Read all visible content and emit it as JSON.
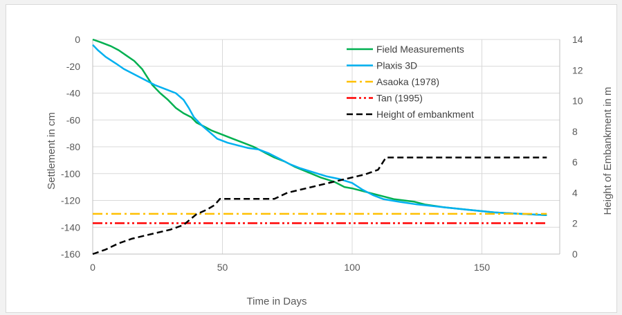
{
  "chart_data": {
    "type": "line",
    "title": "",
    "xlabel": "Time in Days",
    "ylabel": "Settlement in cm",
    "y2label": "Height of Embankment in m",
    "xlim": [
      0,
      180
    ],
    "ylim": [
      -160,
      0
    ],
    "y2lim": [
      0,
      14
    ],
    "xticks": [
      0,
      50,
      100,
      150
    ],
    "yticks": [
      0,
      -20,
      -40,
      -60,
      -80,
      -100,
      -120,
      -140,
      -160
    ],
    "y2ticks": [
      14,
      12,
      10,
      8,
      6,
      4,
      2,
      0
    ],
    "grid": true,
    "legend_position": "top-right",
    "series": [
      {
        "name": "Field Measurements",
        "axis": "left",
        "style": "solid",
        "color": "#00b050",
        "points": [
          [
            0,
            0
          ],
          [
            3,
            -2
          ],
          [
            7,
            -5
          ],
          [
            10,
            -8
          ],
          [
            13,
            -12
          ],
          [
            16,
            -16
          ],
          [
            19,
            -22
          ],
          [
            21,
            -28
          ],
          [
            23,
            -34
          ],
          [
            26,
            -40
          ],
          [
            29,
            -45
          ],
          [
            32,
            -51
          ],
          [
            35,
            -55
          ],
          [
            38,
            -58
          ],
          [
            40,
            -62
          ],
          [
            43,
            -65
          ],
          [
            46,
            -68
          ],
          [
            50,
            -71
          ],
          [
            54,
            -74
          ],
          [
            58,
            -77
          ],
          [
            62,
            -80
          ],
          [
            66,
            -84
          ],
          [
            70,
            -88
          ],
          [
            74,
            -91
          ],
          [
            78,
            -95
          ],
          [
            83,
            -99
          ],
          [
            88,
            -103
          ],
          [
            93,
            -106
          ],
          [
            97,
            -110
          ],
          [
            100,
            -111
          ],
          [
            104,
            -113
          ],
          [
            108,
            -115
          ],
          [
            112,
            -117
          ],
          [
            116,
            -119
          ],
          [
            120,
            -120
          ],
          [
            124,
            -121
          ],
          [
            128,
            -123
          ],
          [
            135,
            -125
          ],
          [
            145,
            -127
          ],
          [
            155,
            -129
          ],
          [
            165,
            -130
          ],
          [
            175,
            -131
          ]
        ]
      },
      {
        "name": "Plaxis 3D",
        "axis": "left",
        "style": "solid",
        "color": "#00b0f0",
        "points": [
          [
            0,
            -4
          ],
          [
            2,
            -8
          ],
          [
            5,
            -13
          ],
          [
            9,
            -18
          ],
          [
            12,
            -22
          ],
          [
            16,
            -26
          ],
          [
            20,
            -30
          ],
          [
            24,
            -34
          ],
          [
            28,
            -37
          ],
          [
            32,
            -40
          ],
          [
            35,
            -45
          ],
          [
            37,
            -51
          ],
          [
            39,
            -58
          ],
          [
            42,
            -64
          ],
          [
            45,
            -69
          ],
          [
            48,
            -74
          ],
          [
            52,
            -77
          ],
          [
            56,
            -79
          ],
          [
            60,
            -81
          ],
          [
            64,
            -82
          ],
          [
            68,
            -85
          ],
          [
            72,
            -89
          ],
          [
            76,
            -93
          ],
          [
            80,
            -96
          ],
          [
            85,
            -99
          ],
          [
            90,
            -102
          ],
          [
            95,
            -104
          ],
          [
            100,
            -107
          ],
          [
            104,
            -112
          ],
          [
            108,
            -116
          ],
          [
            112,
            -119
          ],
          [
            118,
            -121
          ],
          [
            125,
            -123
          ],
          [
            135,
            -125
          ],
          [
            145,
            -127
          ],
          [
            155,
            -129
          ],
          [
            165,
            -130
          ],
          [
            175,
            -131
          ]
        ]
      },
      {
        "name": "Asaoka (1978)",
        "axis": "left",
        "style": "dashdot",
        "color": "#ffc000",
        "points": [
          [
            0,
            -130
          ],
          [
            175,
            -130
          ]
        ]
      },
      {
        "name": "Tan (1995)",
        "axis": "left",
        "style": "dashdotdot",
        "color": "#ff0000",
        "points": [
          [
            0,
            -137
          ],
          [
            175,
            -137
          ]
        ]
      },
      {
        "name": "Height of embankment",
        "axis": "right",
        "style": "dashed",
        "color": "#000000",
        "points": [
          [
            0,
            0
          ],
          [
            5,
            0.3
          ],
          [
            10,
            0.7
          ],
          [
            15,
            1.0
          ],
          [
            20,
            1.2
          ],
          [
            25,
            1.4
          ],
          [
            30,
            1.6
          ],
          [
            35,
            1.9
          ],
          [
            40,
            2.6
          ],
          [
            44,
            2.9
          ],
          [
            47,
            3.2
          ],
          [
            49,
            3.6
          ],
          [
            56,
            3.6
          ],
          [
            60,
            3.6
          ],
          [
            65,
            3.6
          ],
          [
            70,
            3.6
          ],
          [
            75,
            4.0
          ],
          [
            80,
            4.2
          ],
          [
            85,
            4.4
          ],
          [
            90,
            4.6
          ],
          [
            95,
            4.8
          ],
          [
            100,
            5.0
          ],
          [
            105,
            5.2
          ],
          [
            110,
            5.5
          ],
          [
            113,
            6.3
          ],
          [
            120,
            6.3
          ],
          [
            140,
            6.3
          ],
          [
            160,
            6.3
          ],
          [
            175,
            6.3
          ]
        ]
      }
    ]
  }
}
